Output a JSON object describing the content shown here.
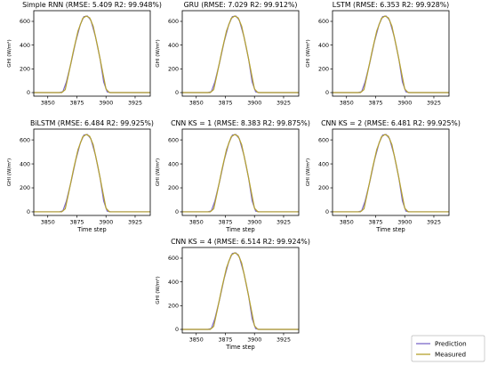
{
  "chart_data": [
    {
      "type": "line",
      "title": "Simple RNN (RMSE: 5.409  R2: 99.948%)",
      "xlabel": "",
      "ylabel": "GHI (W/m²)",
      "xlim": [
        3838,
        3938
      ],
      "ylim": [
        -30,
        690
      ],
      "xticks": [
        "3850",
        "3875",
        "3900",
        "3925"
      ],
      "yticks": [
        "0",
        "200",
        "400",
        "600"
      ],
      "grid": false,
      "series": [
        {
          "name": "Prediction",
          "color": "#7b68c9",
          "x": [
            3838,
            3860,
            3863,
            3866,
            3870,
            3874,
            3878,
            3881,
            3884,
            3887,
            3891,
            3895,
            3898,
            3901,
            3904,
            3938
          ],
          "values": [
            0,
            0,
            8,
            90,
            250,
            430,
            575,
            640,
            645,
            610,
            470,
            280,
            90,
            6,
            0,
            0
          ]
        },
        {
          "name": "Measured",
          "color": "#b5a22c",
          "x": [
            3838,
            3862,
            3865,
            3868,
            3872,
            3876,
            3880,
            3883,
            3886,
            3889,
            3893,
            3897,
            3900,
            3903,
            3938
          ],
          "values": [
            0,
            0,
            25,
            160,
            350,
            520,
            625,
            645,
            630,
            560,
            380,
            180,
            30,
            0,
            0
          ]
        }
      ]
    },
    {
      "type": "line",
      "title": "GRU (RMSE: 7.029  R2: 99.912%)",
      "xlabel": "",
      "ylabel": "GHI (W/m²)",
      "xlim": [
        3838,
        3938
      ],
      "ylim": [
        -30,
        690
      ],
      "xticks": [
        "3850",
        "3875",
        "3900",
        "3925"
      ],
      "yticks": [
        "0",
        "200",
        "400",
        "600"
      ],
      "grid": false,
      "series": [
        {
          "name": "Prediction",
          "color": "#7b68c9",
          "x": [
            3838,
            3860,
            3863,
            3866,
            3870,
            3874,
            3878,
            3881,
            3884,
            3887,
            3891,
            3895,
            3898,
            3901,
            3904,
            3938
          ],
          "values": [
            0,
            0,
            8,
            90,
            250,
            430,
            575,
            640,
            645,
            610,
            470,
            280,
            90,
            6,
            0,
            0
          ]
        },
        {
          "name": "Measured",
          "color": "#b5a22c",
          "x": [
            3838,
            3862,
            3865,
            3868,
            3872,
            3876,
            3880,
            3883,
            3886,
            3889,
            3893,
            3897,
            3900,
            3903,
            3938
          ],
          "values": [
            0,
            0,
            25,
            160,
            350,
            520,
            625,
            645,
            630,
            560,
            380,
            180,
            30,
            0,
            0
          ]
        }
      ]
    },
    {
      "type": "line",
      "title": "LSTM (RMSE: 6.353  R2: 99.928%)",
      "xlabel": "",
      "ylabel": "GHI (W/m²)",
      "xlim": [
        3838,
        3938
      ],
      "ylim": [
        -30,
        690
      ],
      "xticks": [
        "3850",
        "3875",
        "3900",
        "3925"
      ],
      "yticks": [
        "0",
        "200",
        "400",
        "600"
      ],
      "grid": false,
      "series": [
        {
          "name": "Prediction",
          "color": "#7b68c9",
          "x": [
            3838,
            3860,
            3863,
            3866,
            3870,
            3874,
            3878,
            3881,
            3884,
            3887,
            3891,
            3895,
            3898,
            3901,
            3904,
            3938
          ],
          "values": [
            0,
            0,
            8,
            90,
            250,
            430,
            575,
            640,
            645,
            610,
            470,
            280,
            90,
            6,
            0,
            0
          ]
        },
        {
          "name": "Measured",
          "color": "#b5a22c",
          "x": [
            3838,
            3862,
            3865,
            3868,
            3872,
            3876,
            3880,
            3883,
            3886,
            3889,
            3893,
            3897,
            3900,
            3903,
            3938
          ],
          "values": [
            0,
            0,
            25,
            160,
            350,
            520,
            625,
            645,
            630,
            560,
            380,
            180,
            30,
            0,
            0
          ]
        }
      ]
    },
    {
      "type": "line",
      "title": "BiLSTM (RMSE: 6.484  R2: 99.925%)",
      "xlabel": "Time step",
      "ylabel": "GHI (W/m²)",
      "xlim": [
        3838,
        3938
      ],
      "ylim": [
        -30,
        690
      ],
      "xticks": [
        "3850",
        "3875",
        "3900",
        "3925"
      ],
      "yticks": [
        "0",
        "200",
        "400",
        "600"
      ],
      "grid": false,
      "series": [
        {
          "name": "Prediction",
          "color": "#7b68c9",
          "x": [
            3838,
            3860,
            3863,
            3866,
            3870,
            3874,
            3878,
            3881,
            3884,
            3887,
            3891,
            3895,
            3898,
            3901,
            3904,
            3938
          ],
          "values": [
            0,
            0,
            8,
            90,
            250,
            430,
            575,
            640,
            645,
            610,
            470,
            280,
            90,
            6,
            0,
            0
          ]
        },
        {
          "name": "Measured",
          "color": "#b5a22c",
          "x": [
            3838,
            3862,
            3865,
            3868,
            3872,
            3876,
            3880,
            3883,
            3886,
            3889,
            3893,
            3897,
            3900,
            3903,
            3938
          ],
          "values": [
            0,
            0,
            25,
            160,
            350,
            520,
            625,
            645,
            630,
            560,
            380,
            180,
            30,
            0,
            0
          ]
        }
      ]
    },
    {
      "type": "line",
      "title": "CNN KS = 1 (RMSE: 8.383  R2: 99.875%)",
      "xlabel": "Time step",
      "ylabel": "GHI (W/m²)",
      "xlim": [
        3838,
        3938
      ],
      "ylim": [
        -30,
        690
      ],
      "xticks": [
        "3850",
        "3875",
        "3900",
        "3925"
      ],
      "yticks": [
        "0",
        "200",
        "400",
        "600"
      ],
      "grid": false,
      "series": [
        {
          "name": "Prediction",
          "color": "#7b68c9",
          "x": [
            3838,
            3860,
            3863,
            3866,
            3870,
            3874,
            3878,
            3881,
            3884,
            3887,
            3891,
            3895,
            3898,
            3901,
            3904,
            3938
          ],
          "values": [
            0,
            0,
            8,
            90,
            250,
            430,
            575,
            640,
            645,
            610,
            470,
            280,
            90,
            6,
            0,
            0
          ]
        },
        {
          "name": "Measured",
          "color": "#b5a22c",
          "x": [
            3838,
            3862,
            3865,
            3868,
            3872,
            3876,
            3880,
            3883,
            3886,
            3889,
            3893,
            3897,
            3900,
            3903,
            3938
          ],
          "values": [
            0,
            0,
            25,
            160,
            350,
            520,
            625,
            645,
            630,
            560,
            380,
            180,
            30,
            0,
            0
          ]
        }
      ]
    },
    {
      "type": "line",
      "title": "CNN KS = 2 (RMSE: 6.481  R2: 99.925%)",
      "xlabel": "Time step",
      "ylabel": "GHI (W/m²)",
      "xlim": [
        3838,
        3938
      ],
      "ylim": [
        -30,
        690
      ],
      "xticks": [
        "3850",
        "3875",
        "3900",
        "3925"
      ],
      "yticks": [
        "0",
        "200",
        "400",
        "600"
      ],
      "grid": false,
      "series": [
        {
          "name": "Prediction",
          "color": "#7b68c9",
          "x": [
            3838,
            3860,
            3863,
            3866,
            3870,
            3874,
            3878,
            3881,
            3884,
            3887,
            3891,
            3895,
            3898,
            3901,
            3904,
            3938
          ],
          "values": [
            0,
            0,
            8,
            90,
            250,
            430,
            575,
            640,
            645,
            610,
            470,
            280,
            90,
            6,
            0,
            0
          ]
        },
        {
          "name": "Measured",
          "color": "#b5a22c",
          "x": [
            3838,
            3862,
            3865,
            3868,
            3872,
            3876,
            3880,
            3883,
            3886,
            3889,
            3893,
            3897,
            3900,
            3903,
            3938
          ],
          "values": [
            0,
            0,
            25,
            160,
            350,
            520,
            625,
            645,
            630,
            560,
            380,
            180,
            30,
            0,
            0
          ]
        }
      ]
    },
    {
      "type": "line",
      "title": "CNN KS = 4 (RMSE: 6.514  R2: 99.924%)",
      "xlabel": "Time step",
      "ylabel": "GHI (W/m²)",
      "xlim": [
        3838,
        3938
      ],
      "ylim": [
        -30,
        690
      ],
      "xticks": [
        "3850",
        "3875",
        "3900",
        "3925"
      ],
      "yticks": [
        "0",
        "200",
        "400",
        "600"
      ],
      "grid": false,
      "series": [
        {
          "name": "Prediction",
          "color": "#7b68c9",
          "x": [
            3838,
            3860,
            3863,
            3866,
            3870,
            3874,
            3878,
            3881,
            3884,
            3887,
            3891,
            3895,
            3898,
            3901,
            3904,
            3938
          ],
          "values": [
            0,
            0,
            8,
            90,
            250,
            430,
            575,
            640,
            645,
            610,
            470,
            280,
            90,
            6,
            0,
            0
          ]
        },
        {
          "name": "Measured",
          "color": "#b5a22c",
          "x": [
            3838,
            3862,
            3865,
            3868,
            3872,
            3876,
            3880,
            3883,
            3886,
            3889,
            3893,
            3897,
            3900,
            3903,
            3938
          ],
          "values": [
            0,
            0,
            25,
            160,
            350,
            520,
            625,
            645,
            630,
            560,
            380,
            180,
            30,
            0,
            0
          ]
        }
      ]
    }
  ],
  "legend": {
    "placement": "bottom-right",
    "entries": [
      {
        "label": "Prediction",
        "color": "#7b68c9"
      },
      {
        "label": "Measured",
        "color": "#b5a22c"
      }
    ]
  }
}
